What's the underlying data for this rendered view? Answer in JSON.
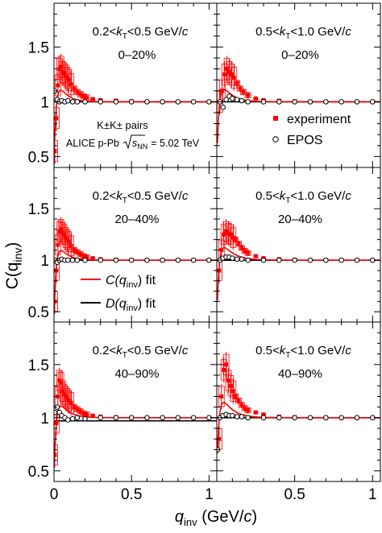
{
  "figure": {
    "ylabel": "C(q",
    "ylabel_sub": "inv",
    "ylabel_end": ")",
    "xlabel_main": "q",
    "xlabel_sub": "inv",
    "xlabel_units": " (GeV/",
    "xlabel_c": "c",
    "xlabel_close": ")"
  },
  "legend": {
    "pairs_label": "K±K± pairs",
    "system_label": "ALICE p-Pb",
    "energy_label": "= 5.02 TeV",
    "energy_symbol": "s",
    "energy_sub": "NN",
    "experiment_label": "experiment",
    "epos_label": "EPOS",
    "fit_c_label": "C(q",
    "fit_c_sub": "inv",
    "fit_c_end": ") fit",
    "fit_d_label": "D(q",
    "fit_d_sub": "inv",
    "fit_d_end": ") fit",
    "colors": {
      "experiment": "#ff0000",
      "epos": "#000000",
      "fit_c": "#ff0000",
      "fit_d": "#000000"
    }
  },
  "chart_data": [
    {
      "type": "scatter",
      "panel": "top-left",
      "kt_low": "0.2<",
      "kt_high": "<0.5 GeV/",
      "centrality": "0–20%",
      "xlim": [
        0,
        1.05
      ],
      "ylim": [
        0.4,
        1.9
      ],
      "yticks": [
        "0.5",
        "1",
        "1.5"
      ],
      "xticks": [],
      "experiment": {
        "x": [
          0.005,
          0.015,
          0.025,
          0.035,
          0.045,
          0.055,
          0.065,
          0.075,
          0.085,
          0.095,
          0.11,
          0.13,
          0.15,
          0.17,
          0.19,
          0.21,
          0.25,
          0.3,
          0.4,
          0.5,
          0.6,
          0.7,
          0.8,
          0.9,
          1.0
        ],
        "y": [
          0.55,
          0.85,
          1.15,
          1.3,
          1.32,
          1.27,
          1.26,
          1.24,
          1.22,
          1.2,
          1.16,
          1.12,
          1.09,
          1.07,
          1.05,
          1.04,
          1.025,
          1.015,
          1.01,
          1.005,
          1.0,
          1.0,
          1.0,
          1.0,
          1.0
        ]
      },
      "epos": {
        "x": [
          0.005,
          0.02,
          0.035,
          0.05,
          0.07,
          0.09,
          0.12,
          0.15,
          0.2,
          0.3,
          0.4,
          0.5,
          0.6,
          0.7,
          0.8,
          0.9,
          1.0
        ],
        "y": [
          1.1,
          1.02,
          1.0,
          1.01,
          1.0,
          1.01,
          1.0,
          1.0,
          1.0,
          1.0,
          1.0,
          1.0,
          1.0,
          1.0,
          1.0,
          1.0,
          1.0
        ]
      },
      "fit_c": {
        "R": 0.05,
        "lambda": 0.35
      },
      "fit_d": {
        "level": 1.0
      }
    },
    {
      "type": "scatter",
      "panel": "top-right",
      "kt_low": "0.5<",
      "kt_high": "<1.0 GeV/",
      "centrality": "0–20%",
      "xlim": [
        0,
        1.05
      ],
      "ylim": [
        0.4,
        1.9
      ],
      "yticks": [],
      "xticks": [],
      "experiment": {
        "x": [
          0.02,
          0.035,
          0.05,
          0.065,
          0.08,
          0.095,
          0.11,
          0.13,
          0.15,
          0.17,
          0.2,
          0.25,
          0.3,
          0.4,
          0.5,
          0.6,
          0.7,
          0.8,
          0.9,
          1.0
        ],
        "y": [
          1.0,
          1.1,
          1.25,
          1.3,
          1.27,
          1.25,
          1.22,
          1.17,
          1.12,
          1.09,
          1.06,
          1.03,
          1.015,
          1.01,
          1.005,
          1.0,
          1.0,
          1.0,
          1.0,
          1.0
        ]
      },
      "epos": {
        "x": [
          0.02,
          0.04,
          0.06,
          0.08,
          0.1,
          0.13,
          0.16,
          0.2,
          0.3,
          0.4,
          0.5,
          0.6,
          0.7,
          0.8,
          0.9,
          1.0
        ],
        "y": [
          1.0,
          0.95,
          1.02,
          1.05,
          1.03,
          1.02,
          1.01,
          1.0,
          1.0,
          1.0,
          1.0,
          1.0,
          1.0,
          1.0,
          1.0,
          1.0
        ]
      },
      "fit_c": {
        "R": 0.06,
        "lambda": 0.32
      },
      "fit_d": {
        "level": 1.0
      }
    },
    {
      "type": "scatter",
      "panel": "middle-left",
      "kt_low": "0.2<",
      "kt_high": "<0.5 GeV/",
      "centrality": "20–40%",
      "xlim": [
        0,
        1.05
      ],
      "ylim": [
        0.4,
        1.9
      ],
      "yticks": [
        "0.5",
        "1",
        "1.5"
      ],
      "xticks": [],
      "experiment": {
        "x": [
          0.005,
          0.015,
          0.025,
          0.035,
          0.045,
          0.055,
          0.065,
          0.075,
          0.085,
          0.095,
          0.11,
          0.13,
          0.15,
          0.17,
          0.19,
          0.21,
          0.25,
          0.3,
          0.4,
          0.5,
          0.6,
          0.7,
          0.8,
          0.9,
          1.0
        ],
        "y": [
          0.6,
          0.9,
          1.15,
          1.28,
          1.3,
          1.27,
          1.25,
          1.22,
          1.2,
          1.18,
          1.14,
          1.1,
          1.08,
          1.06,
          1.04,
          1.03,
          1.02,
          1.01,
          1.005,
          1.0,
          1.0,
          1.0,
          1.0,
          1.0,
          1.0
        ]
      },
      "epos": {
        "x": [
          0.005,
          0.02,
          0.035,
          0.05,
          0.07,
          0.09,
          0.12,
          0.15,
          0.2,
          0.3,
          0.4,
          0.5,
          0.6,
          0.7,
          0.8,
          0.9,
          1.0
        ],
        "y": [
          1.0,
          0.98,
          1.0,
          1.01,
          1.0,
          1.0,
          1.0,
          1.0,
          1.0,
          1.0,
          1.0,
          1.0,
          1.0,
          1.0,
          1.0,
          1.0,
          1.0
        ]
      },
      "fit_c": {
        "R": 0.05,
        "lambda": 0.32
      },
      "fit_d": {
        "level": 1.0
      }
    },
    {
      "type": "scatter",
      "panel": "middle-right",
      "kt_low": "0.5<",
      "kt_high": "<1.0 GeV/",
      "centrality": "20–40%",
      "xlim": [
        0,
        1.05
      ],
      "ylim": [
        0.4,
        1.9
      ],
      "yticks": [],
      "xticks": [],
      "experiment": {
        "x": [
          0.015,
          0.03,
          0.045,
          0.06,
          0.075,
          0.09,
          0.105,
          0.12,
          0.14,
          0.16,
          0.18,
          0.2,
          0.25,
          0.3,
          0.4,
          0.5,
          0.6,
          0.7,
          0.8,
          0.9,
          1.0
        ],
        "y": [
          0.9,
          1.1,
          1.25,
          1.28,
          1.26,
          1.25,
          1.22,
          1.2,
          1.16,
          1.12,
          1.09,
          1.07,
          1.04,
          1.02,
          1.01,
          1.005,
          1.0,
          1.0,
          1.0,
          1.0,
          1.0
        ]
      },
      "epos": {
        "x": [
          0.02,
          0.04,
          0.06,
          0.08,
          0.1,
          0.13,
          0.16,
          0.2,
          0.3,
          0.4,
          0.5,
          0.6,
          0.7,
          0.8,
          0.9,
          1.0
        ],
        "y": [
          1.0,
          1.02,
          1.03,
          1.03,
          1.02,
          1.01,
          1.01,
          1.0,
          1.0,
          1.0,
          1.0,
          1.0,
          1.0,
          1.0,
          1.0,
          1.0
        ]
      },
      "fit_c": {
        "R": 0.07,
        "lambda": 0.3
      },
      "fit_d": {
        "level": 1.0
      }
    },
    {
      "type": "scatter",
      "panel": "bottom-left",
      "kt_low": "0.2<",
      "kt_high": "<0.5 GeV/",
      "centrality": "40–90%",
      "xlim": [
        0,
        1.05
      ],
      "ylim": [
        0.4,
        1.9
      ],
      "yticks": [
        "0.5",
        "1",
        "1.5"
      ],
      "xticks": [
        "0",
        "0.5",
        "1"
      ],
      "experiment": {
        "x": [
          0.005,
          0.015,
          0.025,
          0.035,
          0.045,
          0.055,
          0.065,
          0.075,
          0.085,
          0.095,
          0.11,
          0.13,
          0.15,
          0.17,
          0.19,
          0.21,
          0.25,
          0.3,
          0.4,
          0.5,
          0.6,
          0.7,
          0.8,
          0.9,
          1.0
        ],
        "y": [
          0.65,
          0.95,
          1.2,
          1.35,
          1.33,
          1.25,
          1.22,
          1.2,
          1.18,
          1.16,
          1.14,
          1.1,
          1.08,
          1.06,
          1.04,
          1.03,
          1.02,
          1.01,
          1.005,
          1.0,
          1.0,
          1.0,
          1.0,
          1.0,
          1.0
        ]
      },
      "epos": {
        "x": [
          0.005,
          0.02,
          0.035,
          0.05,
          0.07,
          0.09,
          0.12,
          0.15,
          0.2,
          0.3,
          0.4,
          0.5,
          0.6,
          0.7,
          0.8,
          0.9,
          1.0
        ],
        "y": [
          1.05,
          1.1,
          1.05,
          1.02,
          1.0,
          0.98,
          0.99,
          1.0,
          0.99,
          1.0,
          1.0,
          1.0,
          1.0,
          1.0,
          1.0,
          1.0,
          1.0
        ]
      },
      "fit_c": {
        "R": 0.055,
        "lambda": 0.33
      },
      "fit_d": {
        "level": 0.97
      }
    },
    {
      "type": "scatter",
      "panel": "bottom-right",
      "kt_low": "0.5<",
      "kt_high": "<1.0 GeV/",
      "centrality": "40–90%",
      "xlim": [
        0,
        1.05
      ],
      "ylim": [
        0.4,
        1.9
      ],
      "yticks": [],
      "xticks": [
        "0.5",
        "1"
      ],
      "experiment": {
        "x": [
          0.015,
          0.03,
          0.045,
          0.06,
          0.075,
          0.09,
          0.105,
          0.12,
          0.14,
          0.16,
          0.18,
          0.2,
          0.25,
          0.3,
          0.4,
          0.5,
          0.6,
          0.7,
          0.8,
          0.9,
          1.0
        ],
        "y": [
          0.8,
          1.2,
          1.45,
          1.5,
          1.35,
          1.3,
          1.25,
          1.2,
          1.16,
          1.12,
          1.09,
          1.07,
          1.05,
          1.03,
          1.01,
          1.005,
          1.0,
          1.0,
          1.0,
          1.0,
          1.0
        ]
      },
      "epos": {
        "x": [
          0.005,
          0.02,
          0.04,
          0.06,
          0.08,
          0.1,
          0.13,
          0.16,
          0.2,
          0.3,
          0.4,
          0.5,
          0.6,
          0.7,
          0.8,
          0.9,
          1.0
        ],
        "y": [
          0.7,
          1.0,
          1.02,
          1.03,
          1.02,
          1.02,
          1.01,
          1.01,
          1.0,
          1.0,
          1.0,
          1.0,
          1.0,
          1.0,
          1.0,
          1.0,
          1.0
        ]
      },
      "fit_c": {
        "R": 0.065,
        "lambda": 0.36
      },
      "fit_d": {
        "level": 1.0
      }
    }
  ]
}
